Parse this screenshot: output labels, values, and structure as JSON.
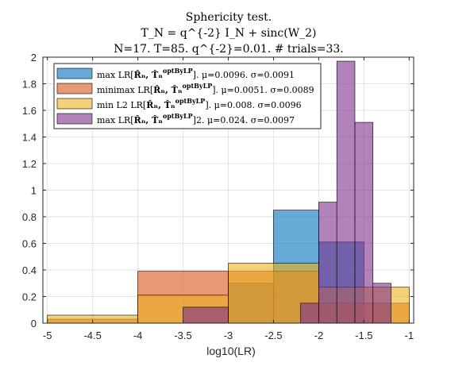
{
  "chart_data": {
    "type": "bar",
    "title_lines": [
      "Sphericity test.",
      "T_N = q^{-2} I_N + sinc(W_2)",
      "N=17. T=85. q^{-2}=0.01. # trials=33."
    ],
    "xlabel": "log10(LR)",
    "ylabel": "",
    "xlim": [
      -5.05,
      -0.95
    ],
    "ylim": [
      0,
      2
    ],
    "xticks": [
      "-5",
      "-4.5",
      "-4",
      "-3.5",
      "-3",
      "-2.5",
      "-2",
      "-1.5",
      "-1"
    ],
    "yticks": [
      "0",
      "0.2",
      "0.4",
      "0.6",
      "0.8",
      "1",
      "1.2",
      "1.4",
      "1.6",
      "1.8",
      "2"
    ],
    "grid": true,
    "legend_position": "top-left",
    "series": [
      {
        "name": "max LR[R̂ₙ, T̂ₙ^optByLP]. μ=0.0096. σ=0.0091",
        "legend_main": "max LR[",
        "legend_sup": "optByLP",
        "legend_tail": "]. μ=0.0096. σ=0.0091",
        "color": "#0072BD",
        "opacity": 0.6,
        "bins": [
          {
            "x0": -3.0,
            "x1": -2.5,
            "y": 0.3
          },
          {
            "x0": -2.5,
            "x1": -2.0,
            "y": 0.85
          },
          {
            "x0": -2.0,
            "x1": -1.5,
            "y": 0.61
          }
        ]
      },
      {
        "name": "minimax LR[R̂ₙ, T̂ₙ^optByLP]. μ=0.0051. σ=0.0089",
        "legend_main": "minimax LR[",
        "legend_sup": "optByLP",
        "legend_tail": "]. μ=0.0051. σ=0.0089",
        "color": "#D95319",
        "opacity": 0.6,
        "bins": [
          {
            "x0": -5.0,
            "x1": -4.0,
            "y": 0.03
          },
          {
            "x0": -4.0,
            "x1": -3.0,
            "y": 0.39
          },
          {
            "x0": -3.0,
            "x1": -2.0,
            "y": 0.39
          },
          {
            "x0": -2.0,
            "x1": -1.0,
            "y": 0.15
          }
        ]
      },
      {
        "name": "min L2 LR[R̂ₙ, T̂ₙ^optByLP]. μ=0.008. σ=0.0096",
        "legend_main": "min L2 LR[",
        "legend_sup": "optByLP",
        "legend_tail": "]. μ=0.008. σ=0.0096",
        "color": "#EDB120",
        "opacity": 0.6,
        "bins": [
          {
            "x0": -5.0,
            "x1": -4.0,
            "y": 0.06
          },
          {
            "x0": -4.0,
            "x1": -3.0,
            "y": 0.21
          },
          {
            "x0": -3.0,
            "x1": -2.0,
            "y": 0.45
          },
          {
            "x0": -2.0,
            "x1": -1.0,
            "y": 0.27
          }
        ]
      },
      {
        "name": "max LR[R̂ₙ, T̂ₙ^optByLP]2. μ=0.024. σ=0.0097",
        "legend_main": "max LR[",
        "legend_sup": "optByLP",
        "legend_tail": "]2. μ=0.024. σ=0.0097",
        "color": "#7E2F8E",
        "opacity": 0.6,
        "bins": [
          {
            "x0": -3.5,
            "x1": -3.0,
            "y": 0.12
          },
          {
            "x0": -2.2,
            "x1": -2.0,
            "y": 0.15
          },
          {
            "x0": -2.0,
            "x1": -1.8,
            "y": 0.91
          },
          {
            "x0": -1.8,
            "x1": -1.6,
            "y": 1.97
          },
          {
            "x0": -1.6,
            "x1": -1.4,
            "y": 1.51
          },
          {
            "x0": -1.4,
            "x1": -1.2,
            "y": 0.3
          }
        ]
      }
    ]
  }
}
